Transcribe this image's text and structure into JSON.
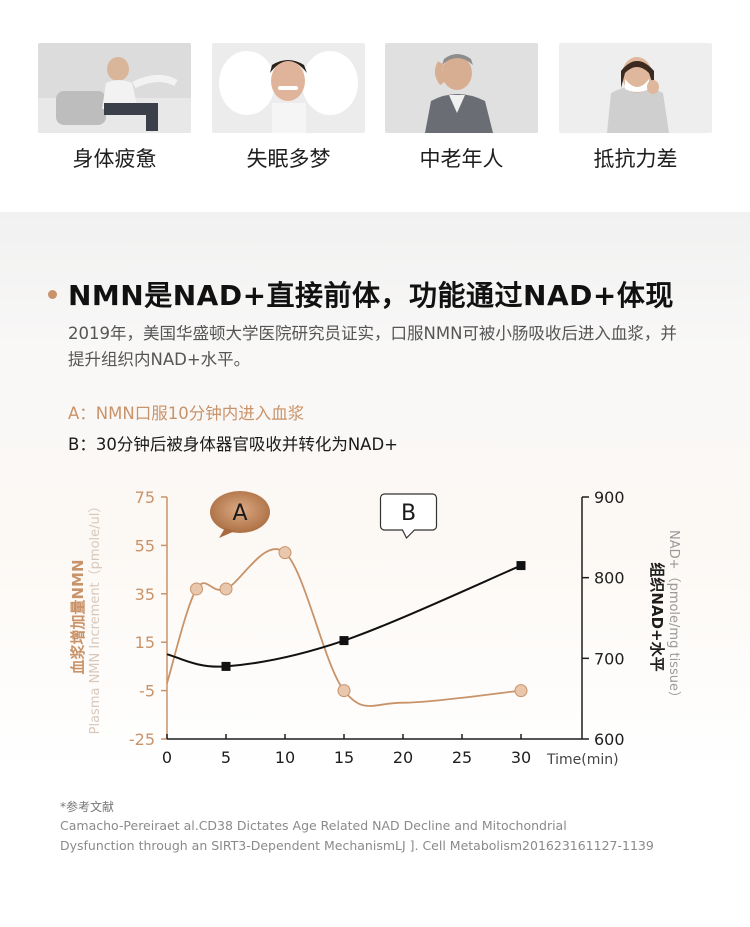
{
  "symptoms": [
    {
      "label": "身体疲惫"
    },
    {
      "label": "失眠多梦"
    },
    {
      "label": "中老年人"
    },
    {
      "label": "抵抗力差"
    }
  ],
  "headline": "NMN是NAD+直接前体，功能通过NAD+体现",
  "description": "2019年，美国华盛顿大学医院研究员证实，口服NMN可被小肠吸收后进入血浆，并提升组织内NAD+水平。",
  "notes": {
    "a": "A：NMN口服10分钟内进入血浆",
    "b": "B：30分钟后被身体器官吸收并转化为NAD+"
  },
  "reference": {
    "title": "*参考文献",
    "line1": "Camacho-Pereiraet al.CD38 Dictates Age Related NAD Decline and Mitochondrial",
    "line2": "Dysfunction through an SIRT3-Dependent MechanismLJ ]. Cell Metabolism201623161127-1139"
  },
  "colors": {
    "plasma": "#c9936a",
    "tissue": "#111111",
    "bubble_a_dark": "#a86a3e",
    "bubble_a_light": "#dcaa84"
  },
  "chart_data": {
    "type": "line",
    "x_ticks": [
      0,
      5,
      10,
      15,
      20,
      25,
      30
    ],
    "xlabel": "Time(min)",
    "xlim": [
      0,
      30
    ],
    "y_left": {
      "label_cn": "血浆增加量NMN",
      "label_en": "Plasma NMN Increment（pmole/ul）",
      "ticks": [
        75,
        55,
        35,
        15,
        -5,
        -25
      ],
      "range": [
        -25,
        75
      ]
    },
    "y_right": {
      "label_cn": "组织NAD+水平",
      "label_en": "NAD+（pmole/mg tissue）",
      "ticks": [
        900,
        800,
        700,
        600
      ],
      "range": [
        600,
        900
      ]
    },
    "series": [
      {
        "key": "plasma",
        "axis": "left",
        "curve_x": [
          0,
          2.5,
          5,
          10,
          15,
          20,
          30
        ],
        "curve_y": [
          -2,
          37,
          37,
          52,
          -5,
          -10,
          -5
        ],
        "marker_x": [
          2.5,
          5,
          10,
          15,
          30
        ],
        "marker_y": [
          37,
          37,
          52,
          -5,
          -5
        ]
      },
      {
        "key": "tissue",
        "axis": "right",
        "curve_x": [
          0,
          5,
          15,
          30
        ],
        "curve_y": [
          705,
          690,
          722,
          815
        ],
        "marker_x": [
          5,
          15,
          30
        ],
        "marker_y": [
          690,
          722,
          815
        ]
      }
    ],
    "annotations": [
      {
        "label": "A",
        "x": 10
      },
      {
        "label": "B",
        "x": 22.5
      }
    ]
  }
}
